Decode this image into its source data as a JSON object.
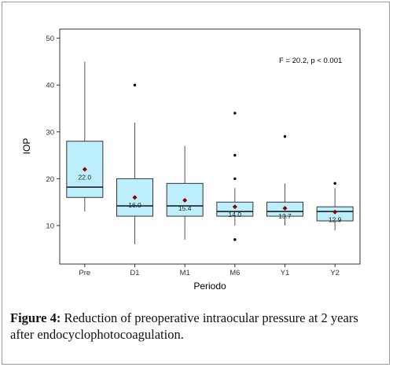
{
  "chart_data": {
    "type": "box",
    "xlabel": "Periodo",
    "ylabel": "IOP",
    "ylim": [
      5,
      50
    ],
    "yticks": [
      10,
      20,
      30,
      40,
      50
    ],
    "annotation": "F = 20.2, p < 0.001",
    "categories": [
      "Pre",
      "D1",
      "M1",
      "M6",
      "Y1",
      "Y2"
    ],
    "boxes": [
      {
        "category": "Pre",
        "whisker_low": 13,
        "q1": 16,
        "median": 18.2,
        "q3": 28,
        "whisker_high": 45,
        "mean": 22.0,
        "mean_label": "22.0",
        "outliers": []
      },
      {
        "category": "D1",
        "whisker_low": 6,
        "q1": 12,
        "median": 14.2,
        "q3": 20,
        "whisker_high": 32,
        "mean": 16.0,
        "mean_label": "16.0",
        "outliers": [
          40
        ]
      },
      {
        "category": "M1",
        "whisker_low": 7,
        "q1": 12,
        "median": 14.2,
        "q3": 19,
        "whisker_high": 27,
        "mean": 15.4,
        "mean_label": "15.4",
        "outliers": []
      },
      {
        "category": "M6",
        "whisker_low": 10,
        "q1": 12,
        "median": 13,
        "q3": 15,
        "whisker_high": 18,
        "mean": 14.0,
        "mean_label": "14.0",
        "outliers": [
          7,
          20,
          25,
          34
        ]
      },
      {
        "category": "Y1",
        "whisker_low": 10,
        "q1": 12,
        "median": 13,
        "q3": 15,
        "whisker_high": 19,
        "mean": 13.7,
        "mean_label": "13.7",
        "outliers": [
          29
        ]
      },
      {
        "category": "Y2",
        "whisker_low": 9,
        "q1": 11,
        "median": 13,
        "q3": 14,
        "whisker_high": 18,
        "mean": 12.9,
        "mean_label": "12.9",
        "outliers": [
          19
        ]
      }
    ],
    "colors": {
      "box_fill": "#bdeefb",
      "box_stroke": "#333333",
      "mean_marker": "#8b0000",
      "outlier": "#000000"
    }
  },
  "caption": {
    "label": "Figure 4:",
    "text": " Reduction of preoperative intraocular pressure at 2 years after endocyclophotocoagulation."
  }
}
